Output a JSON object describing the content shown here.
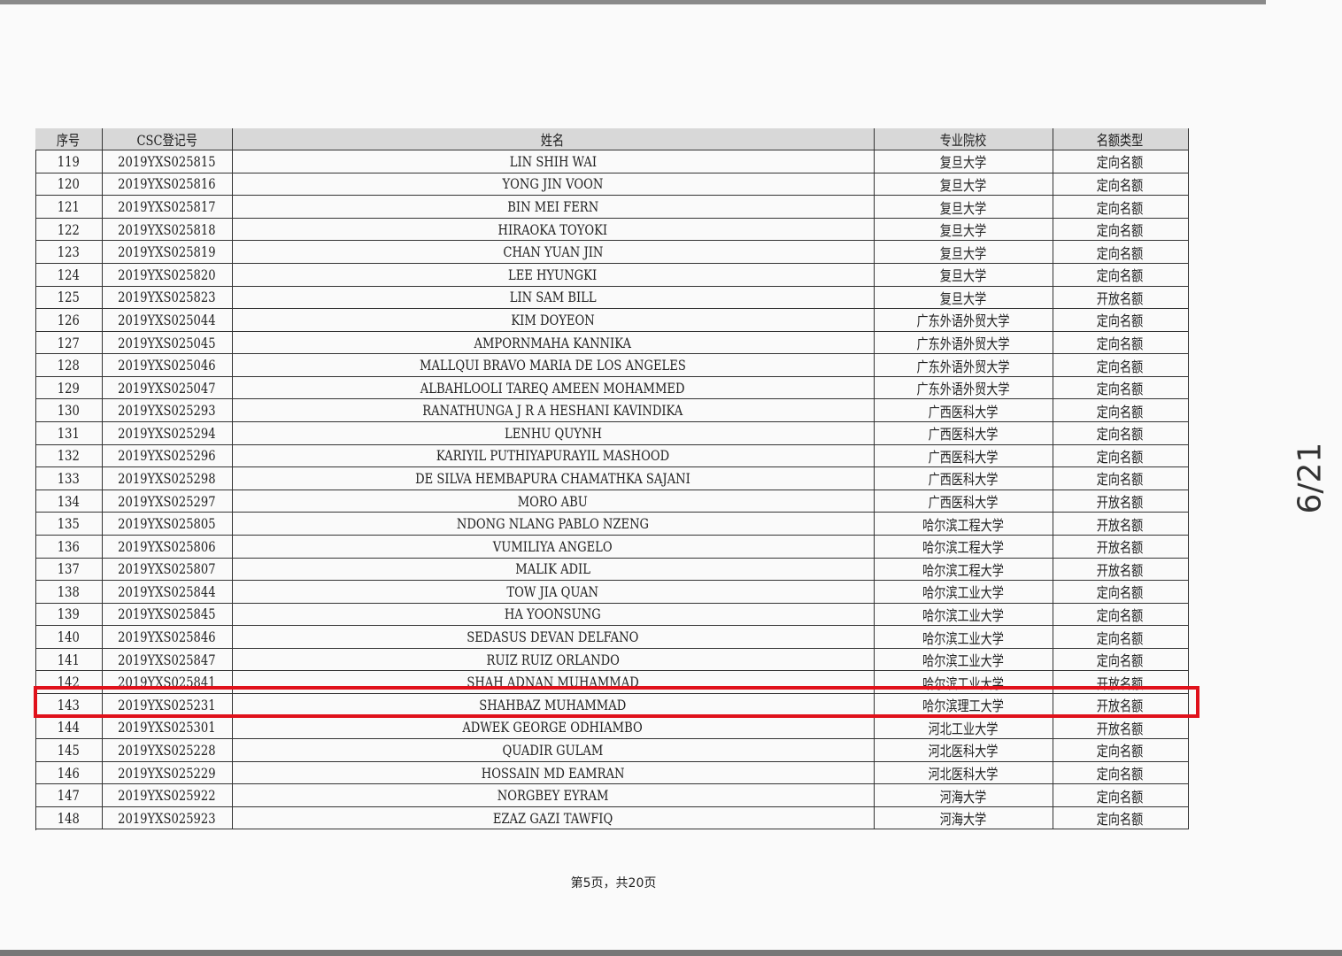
{
  "table": {
    "columns": [
      "序号",
      "CSC登记号",
      "姓名",
      "专业院校",
      "名额类型"
    ],
    "rows": [
      [
        "119",
        "2019YXS025815",
        "LIN SHIH WAI",
        "复旦大学",
        "定向名额"
      ],
      [
        "120",
        "2019YXS025816",
        "YONG JIN VOON",
        "复旦大学",
        "定向名额"
      ],
      [
        "121",
        "2019YXS025817",
        "BIN MEI FERN",
        "复旦大学",
        "定向名额"
      ],
      [
        "122",
        "2019YXS025818",
        "HIRAOKA TOYOKI",
        "复旦大学",
        "定向名额"
      ],
      [
        "123",
        "2019YXS025819",
        "CHAN YUAN JIN",
        "复旦大学",
        "定向名额"
      ],
      [
        "124",
        "2019YXS025820",
        "LEE HYUNGKI",
        "复旦大学",
        "定向名额"
      ],
      [
        "125",
        "2019YXS025823",
        "LIN SAM BILL",
        "复旦大学",
        "开放名额"
      ],
      [
        "126",
        "2019YXS025044",
        "KIM DOYEON",
        "广东外语外贸大学",
        "定向名额"
      ],
      [
        "127",
        "2019YXS025045",
        "AMPORNMAHA KANNIKA",
        "广东外语外贸大学",
        "定向名额"
      ],
      [
        "128",
        "2019YXS025046",
        "MALLQUI BRAVO MARIA DE LOS ANGELES",
        "广东外语外贸大学",
        "定向名额"
      ],
      [
        "129",
        "2019YXS025047",
        "ALBAHLOOLI TAREQ AMEEN MOHAMMED",
        "广东外语外贸大学",
        "定向名额"
      ],
      [
        "130",
        "2019YXS025293",
        "RANATHUNGA J R A HESHANI KAVINDIKA",
        "广西医科大学",
        "定向名额"
      ],
      [
        "131",
        "2019YXS025294",
        "LENHU QUYNH",
        "广西医科大学",
        "定向名额"
      ],
      [
        "132",
        "2019YXS025296",
        "KARIYIL PUTHIYAPURAYIL MASHOOD",
        "广西医科大学",
        "定向名额"
      ],
      [
        "133",
        "2019YXS025298",
        "DE SILVA HEMBAPURA CHAMATHKA SAJANI",
        "广西医科大学",
        "定向名额"
      ],
      [
        "134",
        "2019YXS025297",
        "MORO ABU",
        "广西医科大学",
        "开放名额"
      ],
      [
        "135",
        "2019YXS025805",
        "NDONG NLANG PABLO NZENG",
        "哈尔滨工程大学",
        "开放名额"
      ],
      [
        "136",
        "2019YXS025806",
        "VUMILIYA ANGELO",
        "哈尔滨工程大学",
        "开放名额"
      ],
      [
        "137",
        "2019YXS025807",
        "MALIK ADIL",
        "哈尔滨工程大学",
        "开放名额"
      ],
      [
        "138",
        "2019YXS025844",
        "TOW JIA QUAN",
        "哈尔滨工业大学",
        "定向名额"
      ],
      [
        "139",
        "2019YXS025845",
        "HA YOONSUNG",
        "哈尔滨工业大学",
        "定向名额"
      ],
      [
        "140",
        "2019YXS025846",
        "SEDASUS DEVAN DELFANO",
        "哈尔滨工业大学",
        "定向名额"
      ],
      [
        "141",
        "2019YXS025847",
        "RUIZ RUIZ ORLANDO",
        "哈尔滨工业大学",
        "定向名额"
      ],
      [
        "142",
        "2019YXS025841",
        "SHAH ADNAN MUHAMMAD",
        "哈尔滨工业大学",
        "开放名额"
      ],
      [
        "143",
        "2019YXS025231",
        "SHAHBAZ MUHAMMAD",
        "哈尔滨理工大学",
        "开放名额"
      ],
      [
        "144",
        "2019YXS025301",
        "ADWEK GEORGE ODHIAMBO",
        "河北工业大学",
        "开放名额"
      ],
      [
        "145",
        "2019YXS025228",
        "QUADIR GULAM",
        "河北医科大学",
        "定向名额"
      ],
      [
        "146",
        "2019YXS025229",
        "HOSSAIN MD EAMRAN",
        "河北医科大学",
        "定向名额"
      ],
      [
        "147",
        "2019YXS025922",
        "NORGBEY EYRAM",
        "河海大学",
        "定向名额"
      ],
      [
        "148",
        "2019YXS025923",
        "EZAZ GAZI TAWFIQ",
        "河海大学",
        "定向名额"
      ]
    ]
  },
  "footer": "第5页，共20页",
  "page_indicator": "6/21"
}
